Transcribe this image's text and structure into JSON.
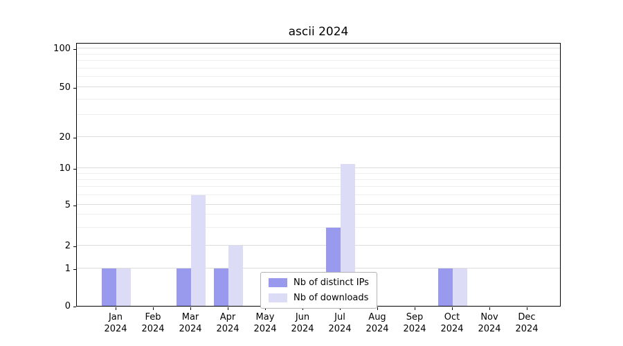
{
  "chart_data": {
    "type": "bar",
    "title": "ascii 2024",
    "categories": [
      "Jan",
      "Feb",
      "Mar",
      "Apr",
      "May",
      "Jun",
      "Jul",
      "Aug",
      "Sep",
      "Oct",
      "Nov",
      "Dec"
    ],
    "category_year": "2024",
    "series": [
      {
        "name": "Nb of distinct IPs",
        "color": "#9999ee",
        "values": [
          1,
          0,
          1,
          1,
          0,
          0,
          3,
          0,
          0,
          1,
          0,
          0
        ]
      },
      {
        "name": "Nb of downloads",
        "color": "#dcdcf7",
        "values": [
          1,
          0,
          6,
          2,
          0,
          0,
          11,
          0,
          0,
          1,
          0,
          0
        ]
      }
    ],
    "yscale": "symlog",
    "ylim": [
      0,
      120
    ],
    "yticks_major": [
      0,
      1,
      2,
      5,
      10,
      20,
      50,
      100
    ],
    "yticks_minor": [
      3,
      4,
      6,
      7,
      8,
      9,
      30,
      40,
      60,
      70,
      80,
      90
    ],
    "grid": "on",
    "legend_position": "lower center"
  }
}
